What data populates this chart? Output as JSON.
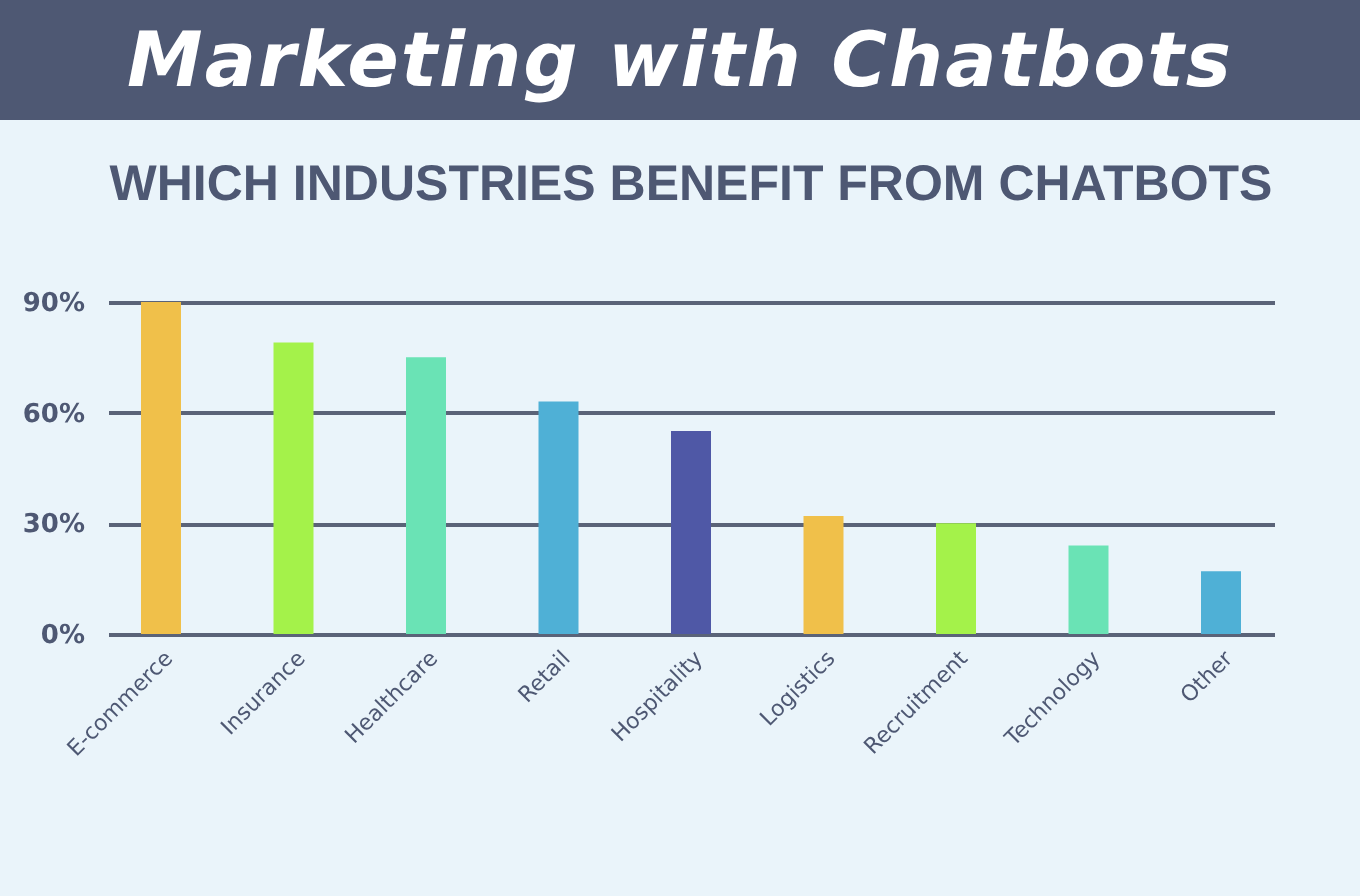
{
  "chart_data": {
    "type": "bar",
    "title": "Marketing with Chatbots",
    "subtitle": "WHICH INDUSTRIES BENEFIT FROM CHATBOTS",
    "categories": [
      "E-commerce",
      "Insurance",
      "Healthcare",
      "Retail",
      "Hospitality",
      "Logistics",
      "Recruitment",
      "Technology",
      "Other"
    ],
    "values": [
      90,
      79,
      75,
      63,
      55,
      32,
      30,
      24,
      17
    ],
    "colors": [
      "#f0c04a",
      "#a4f24a",
      "#6ae3b5",
      "#4fb0d6",
      "#4f58a6",
      "#f0c04a",
      "#a4f24a",
      "#6ae3b5",
      "#4fb0d6"
    ],
    "ylim": [
      0,
      90
    ],
    "yticks": [
      {
        "value": 0,
        "label": "0%"
      },
      {
        "value": 30,
        "label": "30%"
      },
      {
        "value": 60,
        "label": "60%"
      },
      {
        "value": 90,
        "label": "90%"
      }
    ],
    "grid": "y"
  }
}
